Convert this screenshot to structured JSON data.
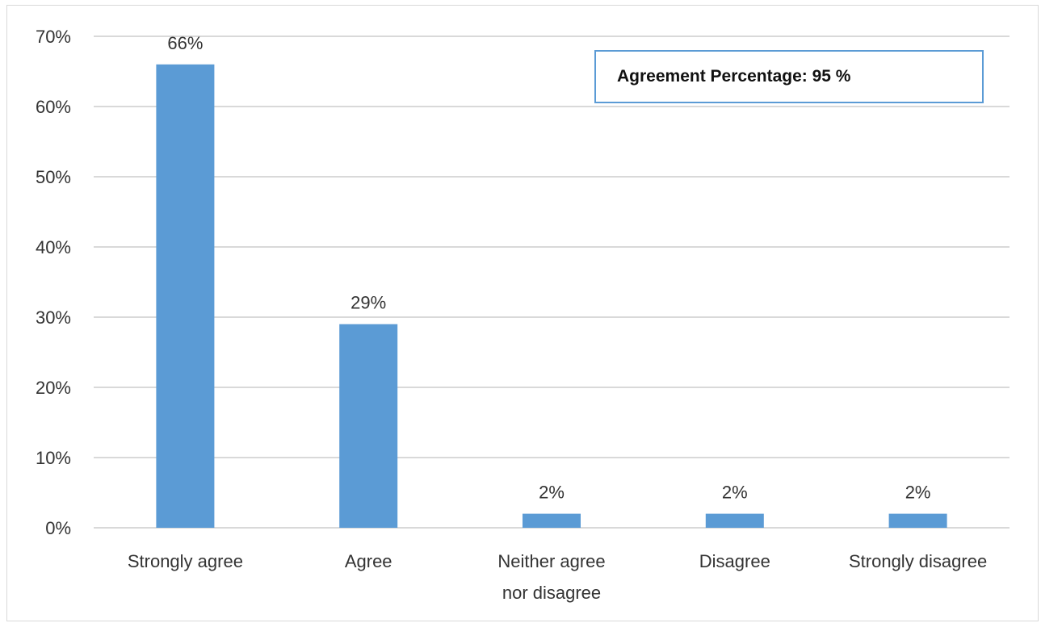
{
  "chart_data": {
    "type": "bar",
    "categories": [
      "Strongly agree",
      "Agree",
      "Neither agree nor disagree",
      "Disagree",
      "Strongly disagree"
    ],
    "category_lines": [
      [
        "Strongly agree"
      ],
      [
        "Agree"
      ],
      [
        "Neither agree",
        "nor disagree"
      ],
      [
        "Disagree"
      ],
      [
        "Strongly disagree"
      ]
    ],
    "values": [
      66,
      29,
      2,
      2,
      2
    ],
    "data_labels": [
      "66%",
      "29%",
      "2%",
      "2%",
      "2%"
    ],
    "ylim": [
      0,
      70
    ],
    "yticks": [
      0,
      10,
      20,
      30,
      40,
      50,
      60,
      70
    ],
    "ytick_labels": [
      "0%",
      "10%",
      "20%",
      "30%",
      "40%",
      "50%",
      "60%",
      "70%"
    ],
    "title": "",
    "xlabel": "",
    "ylabel": "",
    "grid": true,
    "legend": "none",
    "bar_color": "#5b9bd5",
    "grid_color": "#d9d9d9",
    "annotation": "Agreement Percentage: 95 %"
  }
}
